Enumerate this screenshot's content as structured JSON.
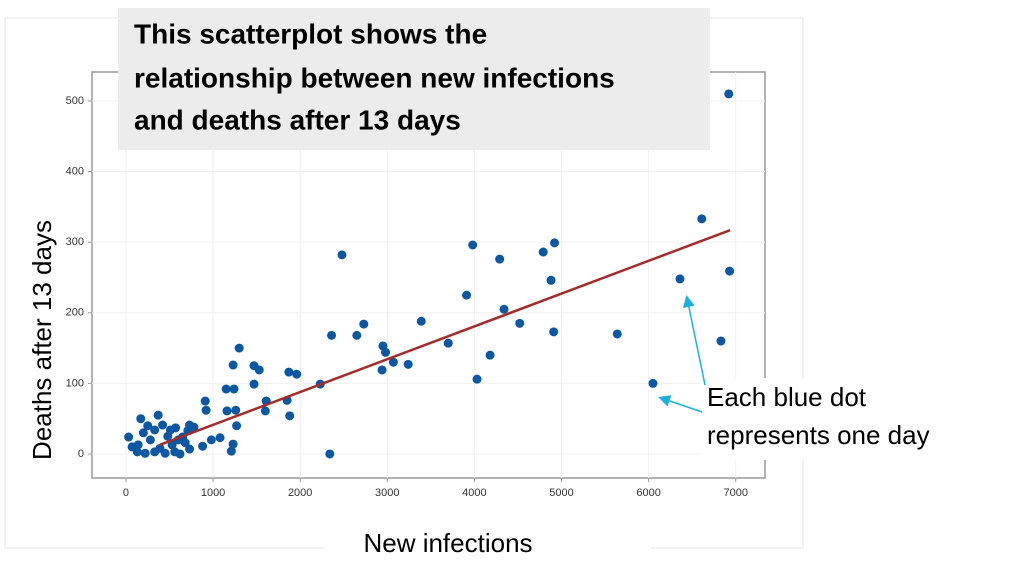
{
  "chart_data": {
    "type": "scatter",
    "title": [
      "This scatterplot shows the",
      "relationship between new infections",
      "and deaths after 13 days"
    ],
    "xlabel": "New infections",
    "ylabel": "Deaths after 13 days",
    "annotation": [
      "Each blue dot",
      "represents one day"
    ],
    "color": "#0b57a4",
    "x": [
      6920,
      6610,
      6930,
      6360,
      6830,
      6050,
      5640,
      4920,
      4790,
      4880,
      4910,
      4520,
      4340,
      4290,
      3980,
      3910,
      4180,
      4030,
      3700,
      3390,
      3240,
      3070,
      2980,
      2950,
      2940,
      2730,
      2650,
      2360,
      2480,
      2230,
      2340,
      1960,
      1870,
      1850,
      1880,
      1610,
      1600,
      1530,
      1470,
      1470,
      1300,
      1230,
      1240,
      1150,
      1160,
      1260,
      1270,
      1230,
      1210,
      1080,
      980,
      910,
      920,
      880,
      780,
      730,
      710,
      650,
      680,
      730,
      600,
      530,
      480,
      420,
      370,
      170,
      30,
      70,
      130,
      220,
      330,
      450,
      560,
      620,
      280,
      200,
      140,
      390,
      510,
      570,
      330,
      250
    ],
    "values": [
      510,
      333,
      259,
      248,
      160,
      100,
      170,
      299,
      286,
      246,
      173,
      185,
      205,
      276,
      296,
      225,
      140,
      106,
      157,
      188,
      127,
      130,
      144,
      153,
      119,
      184,
      168,
      168,
      282,
      99,
      0,
      113,
      116,
      76,
      54,
      75,
      61,
      119,
      125,
      99,
      150,
      126,
      92,
      92,
      61,
      62,
      40,
      14,
      4,
      23,
      20,
      75,
      62,
      11,
      38,
      41,
      33,
      24,
      16,
      7,
      20,
      13,
      25,
      41,
      55,
      50,
      24,
      10,
      3,
      1,
      3,
      1,
      3,
      0,
      20,
      30,
      13,
      8,
      34,
      37,
      34,
      40
    ],
    "trendline": {
      "x": [
        390,
        6935
      ],
      "values": [
        13,
        317
      ],
      "color": "#a52a2a"
    },
    "xlim": [
      -390,
      7336
    ],
    "ylim": [
      -34,
      541
    ],
    "xticks": [
      0,
      1000,
      2000,
      3000,
      4000,
      5000,
      6000,
      7000
    ],
    "yticks": [
      0,
      100,
      200,
      300,
      400,
      500
    ],
    "grid": true
  }
}
